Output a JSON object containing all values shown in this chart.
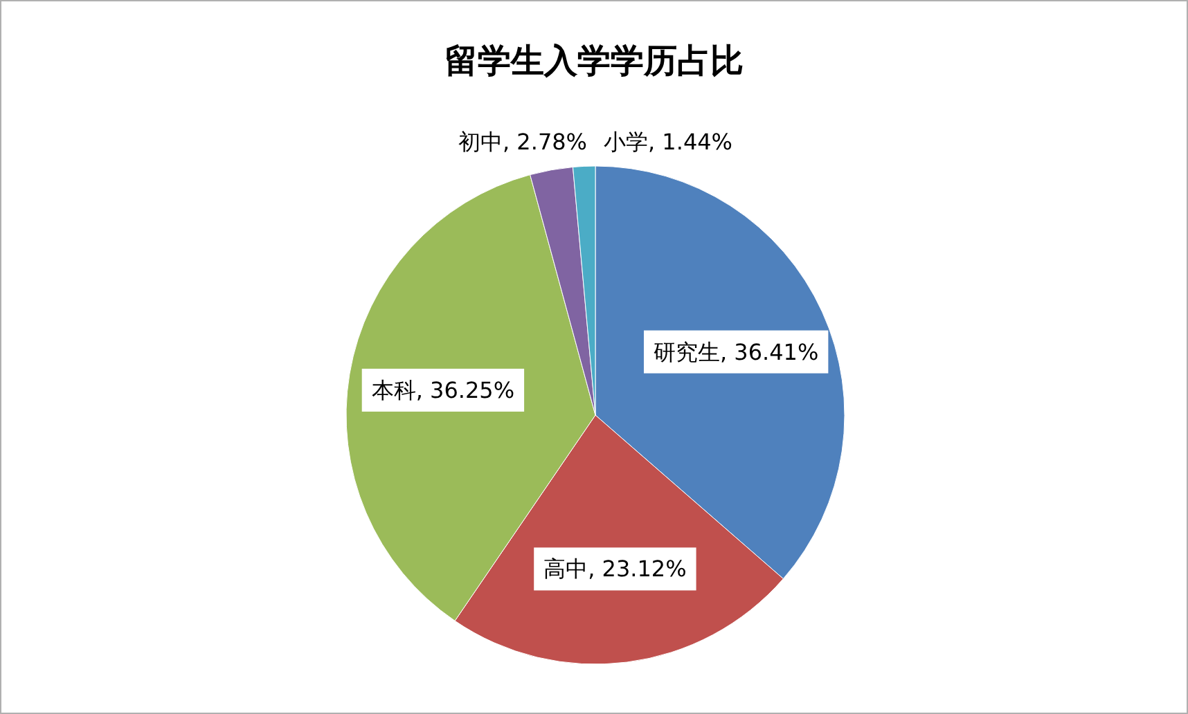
{
  "chart_data": {
    "type": "pie",
    "title": "留学生入学学历占比",
    "categories": [
      "研究生",
      "高中",
      "本科",
      "初中",
      "小学"
    ],
    "values": [
      36.41,
      23.12,
      36.25,
      2.78,
      1.44
    ],
    "colors": [
      "#4f81bd",
      "#c0504d",
      "#9bbb59",
      "#8064a2",
      "#4bacc6"
    ],
    "value_labels": [
      ", 36.41%",
      ", 23.12%",
      ", 36.25%",
      ", 2.78%",
      ", 1.44%"
    ],
    "legend": false
  }
}
